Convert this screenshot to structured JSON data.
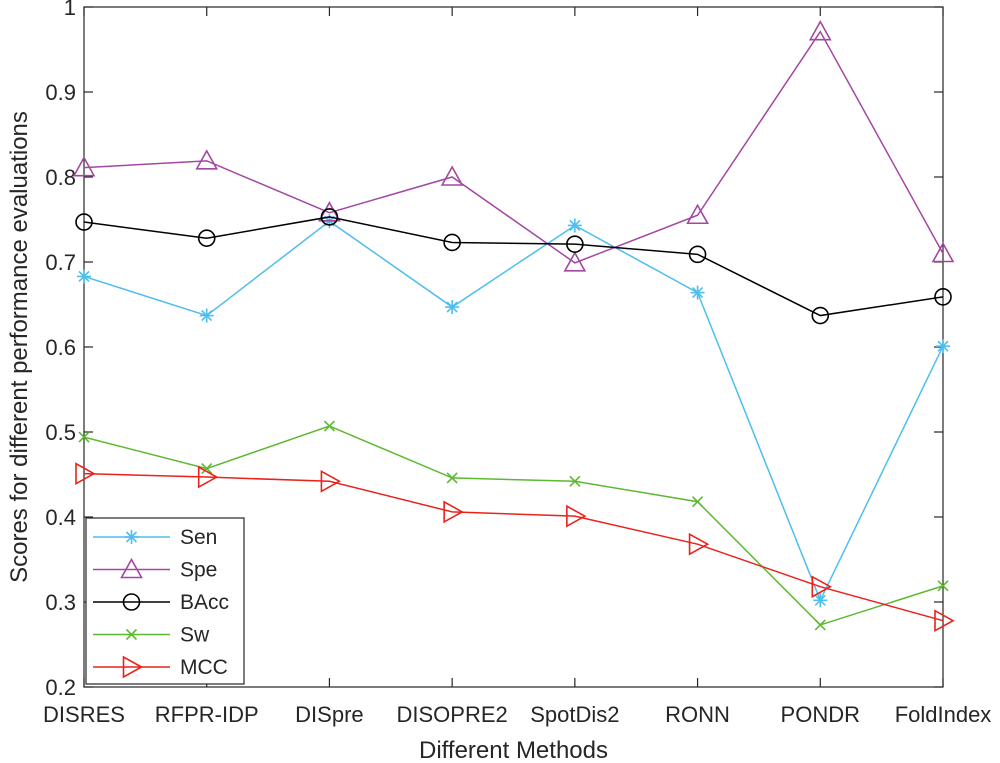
{
  "chart_data": {
    "type": "line",
    "title": "",
    "xlabel": "Different Methods",
    "ylabel": "Scores for different performance evaluations",
    "categories": [
      "DISRES",
      "RFPR-IDP",
      "DISpre",
      "DISOPRE2",
      "SpotDis2",
      "RONN",
      "PONDR",
      "FoldIndex"
    ],
    "ylim": [
      0.2,
      1.0
    ],
    "yticks": [
      "0.2",
      "0.3",
      "0.4",
      "0.5",
      "0.6",
      "0.7",
      "0.8",
      "0.9",
      "1"
    ],
    "grid": false,
    "legend_position": "bottom-left",
    "series": [
      {
        "name": "Sen",
        "marker": "asterisk",
        "color": "#4dbeee",
        "values": [
          0.683,
          0.637,
          0.748,
          0.647,
          0.743,
          0.664,
          0.302,
          0.601
        ]
      },
      {
        "name": "Spe",
        "marker": "triangle-up",
        "color": "#a347a3",
        "values": [
          0.811,
          0.819,
          0.758,
          0.8,
          0.699,
          0.755,
          0.971,
          0.71
        ]
      },
      {
        "name": "BAcc",
        "marker": "circle",
        "color": "#000000",
        "values": [
          0.747,
          0.728,
          0.753,
          0.723,
          0.721,
          0.709,
          0.637,
          0.659
        ]
      },
      {
        "name": "Sw",
        "marker": "x",
        "color": "#5db832",
        "values": [
          0.494,
          0.457,
          0.507,
          0.446,
          0.442,
          0.418,
          0.273,
          0.319
        ]
      },
      {
        "name": "MCC",
        "marker": "triangle-right",
        "color": "#e8231b",
        "values": [
          0.451,
          0.447,
          0.442,
          0.406,
          0.401,
          0.368,
          0.318,
          0.278
        ]
      }
    ]
  }
}
